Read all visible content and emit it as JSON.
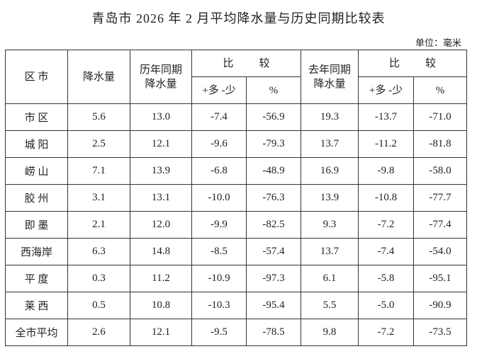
{
  "title": "青岛市 2026 年 2 月平均降水量与历史同期比较表",
  "unit": "单位：毫米",
  "table": {
    "header": {
      "district": "区 市",
      "precip": "降水量",
      "hist": [
        "历年同期",
        "降水量"
      ],
      "compare_hist": "比较",
      "last_year": [
        "去年同期",
        "降水量"
      ],
      "compare_last": "比较",
      "diff_hist": "+多 -少",
      "pct_hist": "%",
      "diff_last": "+多 -少",
      "pct_last": "%"
    },
    "rows": [
      [
        "市 区",
        "5.6",
        "13.0",
        "-7.4",
        "-56.9",
        "19.3",
        "-13.7",
        "-71.0"
      ],
      [
        "城 阳",
        "2.5",
        "12.1",
        "-9.6",
        "-79.3",
        "13.7",
        "-11.2",
        "-81.8"
      ],
      [
        "崂 山",
        "7.1",
        "13.9",
        "-6.8",
        "-48.9",
        "16.9",
        "-9.8",
        "-58.0"
      ],
      [
        "胶 州",
        "3.1",
        "13.1",
        "-10.0",
        "-76.3",
        "13.9",
        "-10.8",
        "-77.7"
      ],
      [
        "即 墨",
        "2.1",
        "12.0",
        "-9.9",
        "-82.5",
        "9.3",
        "-7.2",
        "-77.4"
      ],
      [
        "西海岸",
        "6.3",
        "14.8",
        "-8.5",
        "-57.4",
        "13.7",
        "-7.4",
        "-54.0"
      ],
      [
        "平 度",
        "0.3",
        "11.2",
        "-10.9",
        "-97.3",
        "6.1",
        "-5.8",
        "-95.1"
      ],
      [
        "莱 西",
        "0.5",
        "10.8",
        "-10.3",
        "-95.4",
        "5.5",
        "-5.0",
        "-90.9"
      ],
      [
        "全市平均",
        "2.6",
        "12.1",
        "-9.5",
        "-78.5",
        "9.8",
        "-7.2",
        "-73.5"
      ]
    ]
  }
}
